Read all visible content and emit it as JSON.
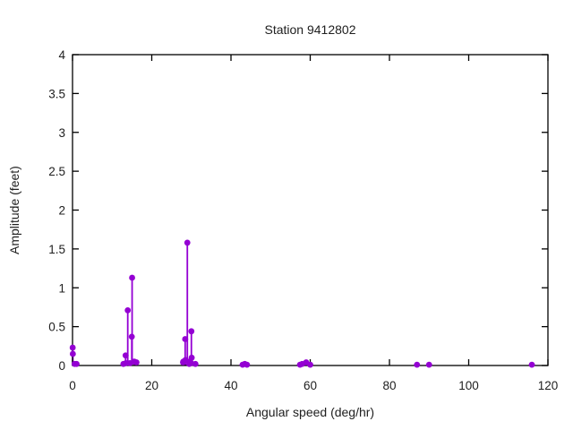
{
  "figure": {
    "background_color": "#ffffff",
    "text_color": "#202020",
    "axis_color": "#000000"
  },
  "chart_data": {
    "type": "stem",
    "style": "impulses+points",
    "title": "Station 9412802",
    "xlabel": "Angular speed (deg/hr)",
    "ylabel": "Amplitude (feet)",
    "xlim": [
      0,
      120
    ],
    "ylim": [
      0,
      4
    ],
    "x_tick_values": [
      0,
      20,
      40,
      60,
      80,
      100,
      120
    ],
    "x_tick_labels": [
      "0",
      "20",
      "40",
      "60",
      "80",
      "100",
      "120"
    ],
    "y_tick_values": [
      0,
      0.5,
      1,
      1.5,
      2,
      2.5,
      3,
      3.5,
      4
    ],
    "y_tick_labels": [
      "0",
      "0.5",
      "1",
      "1.5",
      "2",
      "2.5",
      "3",
      "3.5",
      "4"
    ],
    "grid": false,
    "legend": "none",
    "ticks_mirrored_inward": true,
    "series_color": "#9400d3",
    "marker": "filled-circle",
    "points": [
      {
        "x": 0.04,
        "y": 0.23
      },
      {
        "x": 0.08,
        "y": 0.15
      },
      {
        "x": 0.54,
        "y": 0.02
      },
      {
        "x": 1.02,
        "y": 0.02
      },
      {
        "x": 12.85,
        "y": 0.02
      },
      {
        "x": 13.4,
        "y": 0.13
      },
      {
        "x": 13.47,
        "y": 0.03
      },
      {
        "x": 13.94,
        "y": 0.71
      },
      {
        "x": 14.5,
        "y": 0.03
      },
      {
        "x": 14.96,
        "y": 0.37
      },
      {
        "x": 15.04,
        "y": 1.13
      },
      {
        "x": 15.59,
        "y": 0.05
      },
      {
        "x": 16.14,
        "y": 0.04
      },
      {
        "x": 27.9,
        "y": 0.04
      },
      {
        "x": 27.97,
        "y": 0.05
      },
      {
        "x": 28.44,
        "y": 0.34
      },
      {
        "x": 28.51,
        "y": 0.07
      },
      {
        "x": 28.98,
        "y": 1.58
      },
      {
        "x": 29.46,
        "y": 0.02
      },
      {
        "x": 29.53,
        "y": 0.05
      },
      {
        "x": 29.96,
        "y": 0.03
      },
      {
        "x": 30.0,
        "y": 0.44
      },
      {
        "x": 30.08,
        "y": 0.1
      },
      {
        "x": 31.02,
        "y": 0.02
      },
      {
        "x": 42.93,
        "y": 0.01
      },
      {
        "x": 43.48,
        "y": 0.02
      },
      {
        "x": 44.03,
        "y": 0.01
      },
      {
        "x": 57.42,
        "y": 0.01
      },
      {
        "x": 57.97,
        "y": 0.02
      },
      {
        "x": 58.98,
        "y": 0.04
      },
      {
        "x": 60.0,
        "y": 0.01
      },
      {
        "x": 86.95,
        "y": 0.01
      },
      {
        "x": 90.0,
        "y": 0.01
      },
      {
        "x": 115.94,
        "y": 0.01
      }
    ]
  }
}
